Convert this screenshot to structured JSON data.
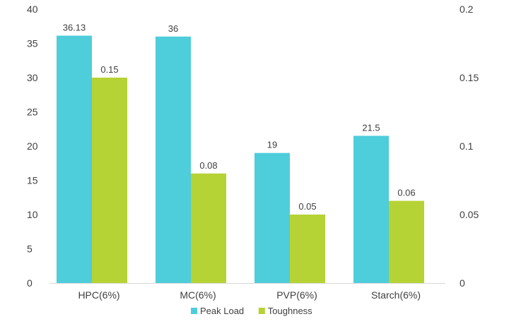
{
  "chart_data": {
    "type": "bar",
    "categories": [
      "HPC(6%)",
      "MC(6%)",
      "PVP(6%)",
      "Starch(6%)"
    ],
    "series": [
      {
        "name": "Peak Load",
        "axis": "left",
        "color": "#4ECDDB",
        "values": [
          36.13,
          36,
          19,
          21.5
        ]
      },
      {
        "name": "Toughness",
        "axis": "right",
        "color": "#B5D334",
        "values": [
          0.15,
          0.08,
          0.05,
          0.06
        ]
      }
    ],
    "data_labels": {
      "Peak Load": [
        "36.13",
        "36",
        "19",
        "21.5"
      ],
      "Toughness": [
        "0.15",
        "0.08",
        "0.05",
        "0.06"
      ]
    },
    "y_left": {
      "range": [
        0,
        40
      ],
      "ticks": [
        0,
        5,
        10,
        15,
        20,
        25,
        30,
        35,
        40
      ],
      "tick_labels": [
        "0",
        "5",
        "10",
        "15",
        "20",
        "25",
        "30",
        "35",
        "40"
      ]
    },
    "y_right": {
      "range": [
        0,
        0.2
      ],
      "ticks": [
        0,
        0.05,
        0.1,
        0.15,
        0.2
      ],
      "tick_labels": [
        "0",
        "0.05",
        "0.1",
        "0.15",
        "0.2"
      ]
    },
    "grid": false,
    "legend_position": "bottom-center",
    "axis_color": "#D9D9D9",
    "text_color": "#404040"
  }
}
